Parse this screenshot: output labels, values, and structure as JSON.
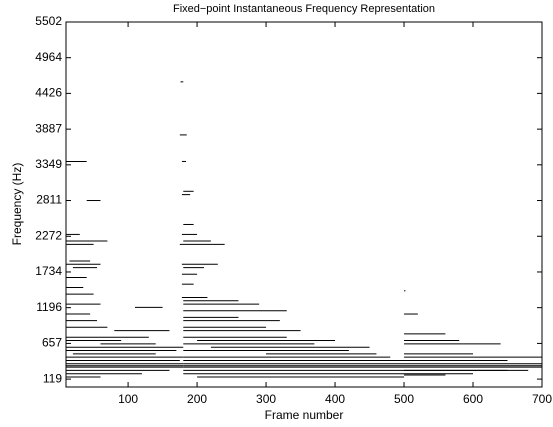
{
  "chart_data": {
    "type": "segments",
    "title": "Fixed−point Instantaneous Frequency Representation",
    "x_label": "Frame number",
    "y_label": "Frequency (Hz)",
    "xlim": [
      10,
      700
    ],
    "xticks": [
      100,
      200,
      300,
      400,
      500,
      600,
      700
    ],
    "ylim": [
      0,
      5502
    ],
    "yticks": [
      119,
      657,
      1196,
      1734,
      2272,
      2811,
      3349,
      3887,
      4426,
      4964,
      5502
    ],
    "color": "#000000",
    "x_start": [
      10,
      40,
      10,
      10,
      10,
      15,
      10,
      20,
      10,
      10,
      10,
      10,
      110,
      10,
      10,
      10,
      80,
      10,
      10,
      60,
      10,
      10,
      20,
      10,
      10,
      10,
      10,
      10,
      10,
      10,
      10,
      176,
      175,
      178,
      180,
      178,
      180,
      178,
      180,
      175,
      178,
      180,
      178,
      178,
      178,
      180,
      180,
      180,
      180,
      180,
      180,
      180,
      180,
      200,
      180,
      220,
      180,
      300,
      180,
      180,
      180,
      180,
      180,
      180,
      180,
      200,
      500,
      500,
      500,
      500,
      500,
      500,
      500,
      500,
      500,
      500
    ],
    "x_end": [
      40,
      60,
      30,
      70,
      50,
      45,
      60,
      55,
      40,
      35,
      50,
      60,
      150,
      45,
      55,
      70,
      160,
      130,
      90,
      140,
      180,
      170,
      140,
      180,
      175,
      180,
      180,
      180,
      160,
      120,
      60,
      180,
      185,
      184,
      195,
      190,
      195,
      200,
      220,
      240,
      230,
      210,
      200,
      195,
      215,
      260,
      290,
      330,
      260,
      320,
      300,
      350,
      330,
      400,
      370,
      450,
      420,
      460,
      480,
      500,
      700,
      700,
      700,
      650,
      600,
      500,
      502,
      520,
      560,
      580,
      640,
      600,
      700,
      650,
      680,
      560
    ],
    "y": [
      3400,
      2811,
      2300,
      2200,
      2150,
      1900,
      1850,
      1800,
      1650,
      1500,
      1400,
      1250,
      1200,
      1100,
      1000,
      900,
      850,
      750,
      700,
      650,
      600,
      550,
      500,
      450,
      400,
      350,
      320,
      300,
      250,
      200,
      150,
      4600,
      3800,
      3400,
      2950,
      2900,
      2450,
      2300,
      2200,
      2150,
      1850,
      1800,
      1700,
      1550,
      1350,
      1300,
      1250,
      1150,
      1050,
      1000,
      900,
      850,
      750,
      700,
      650,
      600,
      550,
      500,
      450,
      400,
      350,
      320,
      300,
      250,
      200,
      150,
      1450,
      1100,
      800,
      700,
      650,
      500,
      450,
      400,
      250,
      180
    ]
  }
}
